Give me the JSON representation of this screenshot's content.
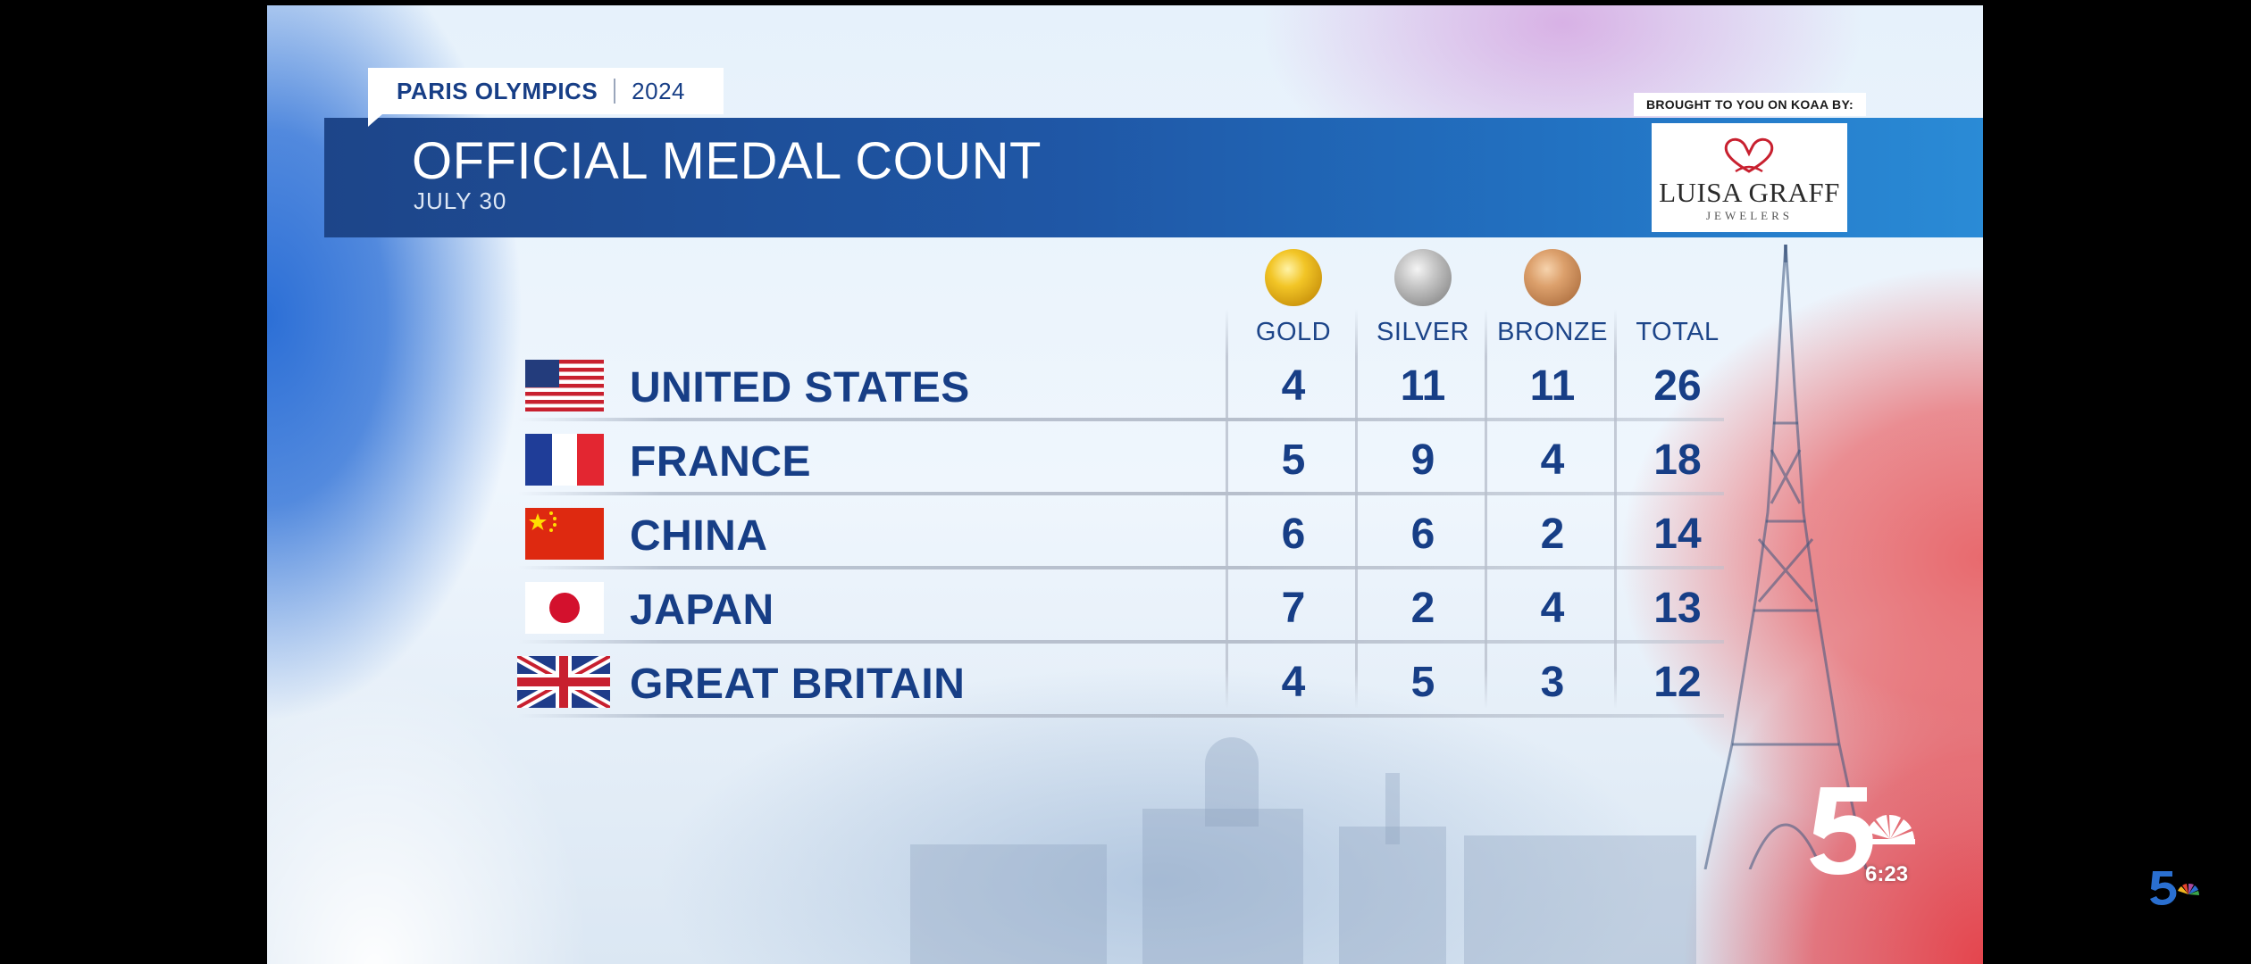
{
  "header": {
    "event": "PARIS OLYMPICS",
    "year": "2024",
    "title": "OFFICIAL MEDAL COUNT",
    "date": "JULY 30"
  },
  "sponsor": {
    "label": "BROUGHT TO YOU ON KOAA BY:",
    "name": "LUISA GRAFF",
    "sub": "JEWELERS"
  },
  "columns": [
    "GOLD",
    "SILVER",
    "BRONZE",
    "TOTAL"
  ],
  "medals": [
    {
      "country": "UNITED STATES",
      "flag": "us-flag-icon",
      "gold": "4",
      "silver": "11",
      "bronze": "11",
      "total": "26"
    },
    {
      "country": "FRANCE",
      "flag": "france-flag-icon",
      "gold": "5",
      "silver": "9",
      "bronze": "4",
      "total": "18"
    },
    {
      "country": "CHINA",
      "flag": "china-flag-icon",
      "gold": "6",
      "silver": "6",
      "bronze": "2",
      "total": "14"
    },
    {
      "country": "JAPAN",
      "flag": "japan-flag-icon",
      "gold": "7",
      "silver": "2",
      "bronze": "4",
      "total": "13"
    },
    {
      "country": "GREAT BRITAIN",
      "flag": "uk-flag-icon",
      "gold": "4",
      "silver": "5",
      "bronze": "3",
      "total": "12"
    }
  ],
  "bug": {
    "time": "6:23"
  },
  "colors": {
    "navy": "#173e86",
    "banner": "#1f57a6"
  }
}
